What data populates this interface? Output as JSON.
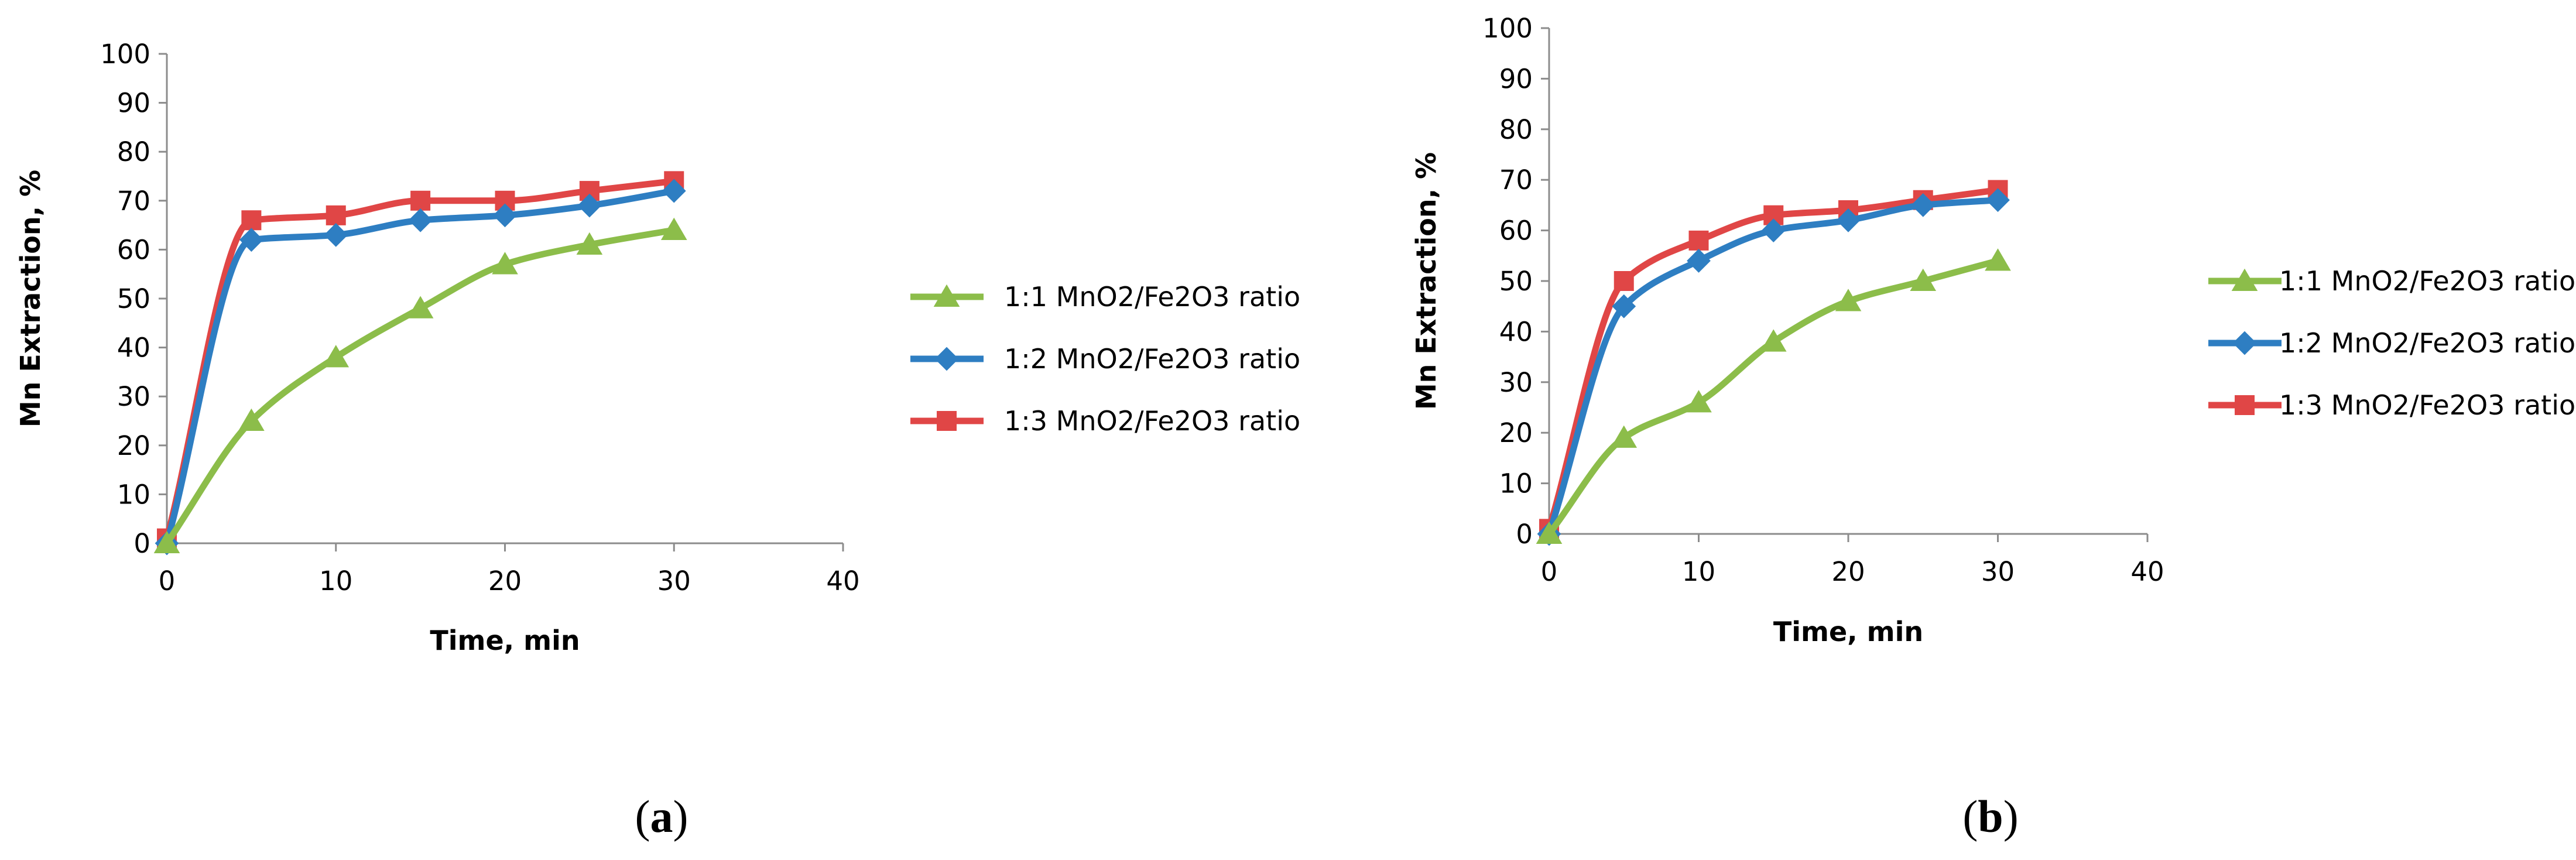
{
  "chart_data": [
    {
      "type": "line",
      "panel": "a",
      "caption": "(a)",
      "caption_letter": "a",
      "xlabel": "Time, min",
      "ylabel": "Mn Extraction, %",
      "xlim": [
        0,
        40
      ],
      "ylim": [
        0,
        100
      ],
      "xticks": [
        0,
        10,
        20,
        30,
        40
      ],
      "yticks": [
        0,
        10,
        20,
        30,
        40,
        50,
        60,
        70,
        80,
        90,
        100
      ],
      "grid": false,
      "legend_position": "right",
      "series": [
        {
          "name": "1:1 MnO2/Fe2O3 ratio",
          "color": "#8cbd4a",
          "marker": "triangle",
          "x": [
            0,
            5,
            10,
            15,
            20,
            25,
            30
          ],
          "y": [
            0,
            25,
            38,
            48,
            57,
            61,
            64
          ]
        },
        {
          "name": "1:2 MnO2/Fe2O3 ratio",
          "color": "#2e7ec2",
          "marker": "diamond",
          "x": [
            0,
            5,
            10,
            15,
            20,
            25,
            30
          ],
          "y": [
            0,
            62,
            63,
            66,
            67,
            69,
            72
          ]
        },
        {
          "name": "1:3 MnO2/Fe2O3 ratio",
          "color": "#e04646",
          "marker": "square",
          "x": [
            0,
            5,
            10,
            15,
            20,
            25,
            30
          ],
          "y": [
            1,
            66,
            67,
            70,
            70,
            72,
            74
          ]
        }
      ]
    },
    {
      "type": "line",
      "panel": "b",
      "caption": "(b)",
      "caption_letter": "b",
      "xlabel": "Time, min",
      "ylabel": "Mn Extraction, %",
      "xlim": [
        0,
        40
      ],
      "ylim": [
        0,
        100
      ],
      "xticks": [
        0,
        10,
        20,
        30,
        40
      ],
      "yticks": [
        0,
        10,
        20,
        30,
        40,
        50,
        60,
        70,
        80,
        90,
        100
      ],
      "grid": false,
      "legend_position": "right",
      "series": [
        {
          "name": "1:1 MnO2/Fe2O3 ratio",
          "color": "#8cbd4a",
          "marker": "triangle",
          "x": [
            0,
            5,
            10,
            15,
            20,
            25,
            30
          ],
          "y": [
            0,
            19,
            26,
            38,
            46,
            50,
            54
          ]
        },
        {
          "name": "1:2 MnO2/Fe2O3 ratio",
          "color": "#2e7ec2",
          "marker": "diamond",
          "x": [
            0,
            5,
            10,
            15,
            20,
            25,
            30
          ],
          "y": [
            0,
            45,
            54,
            60,
            62,
            65,
            66
          ]
        },
        {
          "name": "1:3 MnO2/Fe2O3 ratio",
          "color": "#e04646",
          "marker": "square",
          "x": [
            0,
            5,
            10,
            15,
            20,
            25,
            30
          ],
          "y": [
            1,
            50,
            58,
            63,
            64,
            66,
            68
          ]
        }
      ]
    }
  ]
}
